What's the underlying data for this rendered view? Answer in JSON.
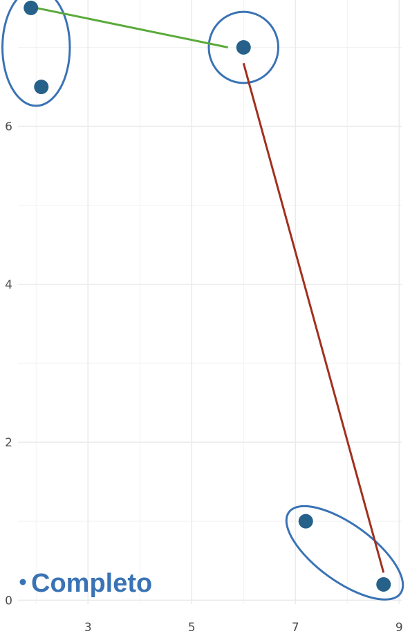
{
  "chart_data": {
    "type": "scatter",
    "title": "",
    "xlabel": "",
    "ylabel": "",
    "xlim": [
      1.65,
      9.05
    ],
    "ylim": [
      -0.05,
      7.6
    ],
    "x_ticks": [
      3,
      5,
      7,
      9
    ],
    "y_ticks": [
      0,
      2,
      4,
      6
    ],
    "x_minor": [
      2,
      4,
      6,
      8
    ],
    "y_minor": [
      1,
      3,
      5,
      7
    ],
    "grid": true,
    "points": [
      {
        "x": 1.9,
        "y": 7.5
      },
      {
        "x": 2.1,
        "y": 6.5
      },
      {
        "x": 6.0,
        "y": 7.0
      },
      {
        "x": 7.2,
        "y": 1.0
      },
      {
        "x": 8.7,
        "y": 0.2
      }
    ],
    "clusters": [
      {
        "cx": 2.0,
        "cy": 7.0,
        "rx": 0.65,
        "ry": 0.74,
        "angle": 0
      },
      {
        "cx": 6.0,
        "cy": 7.0,
        "rx": 0.67,
        "ry": 0.45,
        "angle": 0
      },
      {
        "cx": 7.95,
        "cy": 0.6,
        "rx": 1.33,
        "ry": 0.36,
        "angle": 36
      }
    ],
    "connectors": [
      {
        "from": [
          2.0,
          7.5
        ],
        "to": [
          5.7,
          7.0
        ],
        "color": "#5aaa3a"
      },
      {
        "from": [
          6.0,
          6.8
        ],
        "to": [
          8.7,
          0.35
        ],
        "color": "#a1301f"
      }
    ],
    "colors": {
      "point": "#26618a",
      "cluster_outline": "#3a73b5",
      "badge": "#3a73b5"
    }
  },
  "badge": {
    "text": "Completo"
  }
}
